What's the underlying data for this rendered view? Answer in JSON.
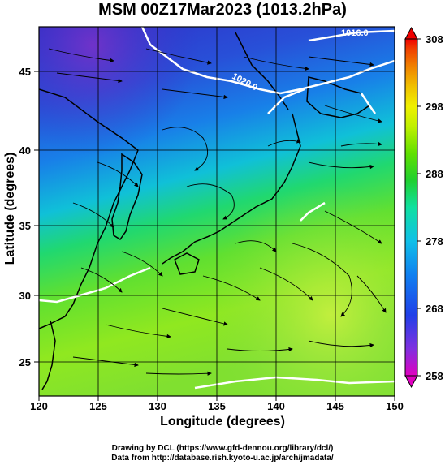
{
  "title": "MSM 00Z17Mar2023 (1013.2hPa)",
  "axes": {
    "xlabel": "Longitude (degrees)",
    "ylabel": "Latitude  (degrees)",
    "x_ticks": [
      "120",
      "125",
      "130",
      "135",
      "140",
      "145",
      "150"
    ],
    "y_ticks": [
      "25",
      "30",
      "35",
      "40",
      "45"
    ],
    "x_range": [
      120,
      150
    ],
    "y_range": [
      22.4,
      47.6
    ]
  },
  "colorbar": {
    "ticks": [
      "308",
      "298",
      "288",
      "278",
      "268",
      "258"
    ],
    "range": [
      258,
      308
    ],
    "colors": [
      "#e000c0",
      "#8030e0",
      "#2040e8",
      "#1080f0",
      "#10c0e8",
      "#10e0a0",
      "#20d030",
      "#60e000",
      "#c0f000",
      "#f0f000",
      "#f0c000",
      "#f08000",
      "#f04000",
      "#f00000"
    ]
  },
  "contours": [
    {
      "label": "1016.0"
    },
    {
      "label": "1020.0"
    }
  ],
  "credits": {
    "line1": "Drawing by DCL (https://www.gfd-dennou.org/library/dcl/)",
    "line2": "Data from http://database.rish.kyoto-u.ac.jp/arch/jmadata/"
  }
}
